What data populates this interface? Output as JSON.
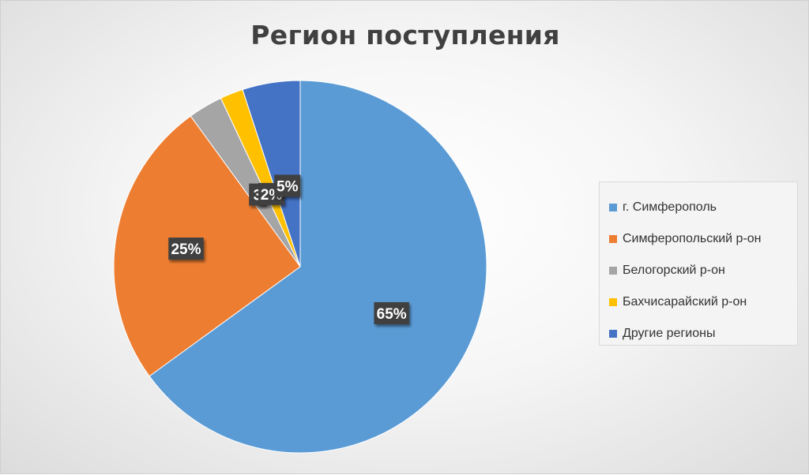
{
  "chart_data": {
    "type": "pie",
    "title": "Регион поступления",
    "series": [
      {
        "categories": [
          "г. Симферополь",
          "Симферопольский р-он",
          "Белогорский р-он",
          "Бахчисарайский р-он",
          "Другие регионы"
        ],
        "values": [
          65,
          25,
          3,
          2,
          5
        ],
        "data_labels": [
          "65%",
          "25%",
          "3",
          "2%",
          "5%"
        ],
        "colors": [
          "#5b9bd5",
          "#ed7d31",
          "#a5a5a5",
          "#ffc000",
          "#4472c4"
        ]
      }
    ],
    "legend": {
      "position": "right",
      "items": [
        "г. Симферополь",
        "Симферопольский р-он",
        "Белогорский р-он",
        "Бахчисарайский р-он",
        "Другие регионы"
      ]
    }
  }
}
